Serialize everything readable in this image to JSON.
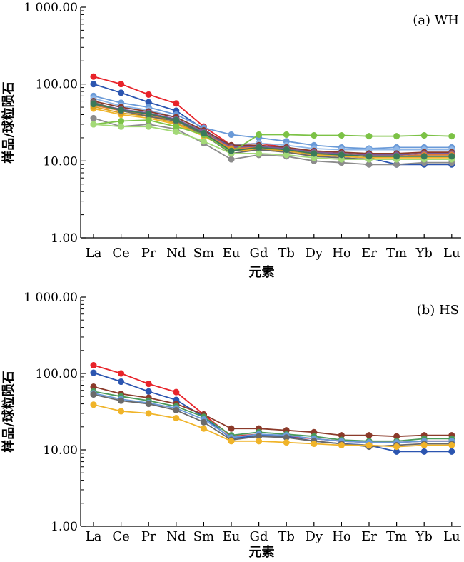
{
  "chart_data": [
    {
      "type": "line",
      "panel_label": "(a) WH",
      "xlabel": "元素",
      "ylabel": "样品/球粒陨石",
      "y_scale": "log",
      "ylim": [
        1,
        1000
      ],
      "ytick_labels": [
        "1.00",
        "10.00",
        "100.00",
        "1 000.00"
      ],
      "categories": [
        "La",
        "Ce",
        "Pr",
        "Nd",
        "Sm",
        "Eu",
        "Gd",
        "Tb",
        "Dy",
        "Ho",
        "Er",
        "Tm",
        "Yb",
        "Lu"
      ],
      "series": [
        {
          "color": "#e8232a",
          "values": [
            125,
            100,
            73,
            56,
            28,
            16,
            17,
            15,
            13,
            12.5,
            12,
            12,
            12.5,
            12.5
          ]
        },
        {
          "color": "#2b55b0",
          "values": [
            100,
            77,
            58,
            45,
            26,
            15,
            16,
            14,
            12,
            11.5,
            11,
            9,
            9,
            9
          ]
        },
        {
          "color": "#6a9ad8",
          "values": [
            70,
            57,
            50,
            40,
            27,
            22,
            20,
            18,
            16,
            15,
            14.5,
            15,
            15,
            15
          ]
        },
        {
          "color": "#8fb7e8",
          "values": [
            65,
            52,
            46,
            37,
            25,
            16,
            17,
            16,
            14.5,
            14,
            14,
            14,
            14,
            14
          ]
        },
        {
          "color": "#8b3a2a",
          "values": [
            60,
            50,
            44,
            37,
            25,
            16,
            16,
            15,
            13.5,
            13,
            12.5,
            12.5,
            13,
            13
          ]
        },
        {
          "color": "#7a5a9a",
          "values": [
            56,
            47,
            42,
            35,
            24,
            15,
            15.5,
            14.5,
            13,
            12.5,
            12,
            12,
            12.5,
            12.5
          ]
        },
        {
          "color": "#e07b39",
          "values": [
            53,
            45,
            40,
            33,
            23,
            14.5,
            15,
            14,
            12.5,
            12,
            11.5,
            11.5,
            12,
            12
          ]
        },
        {
          "color": "#f0b429",
          "values": [
            48,
            40,
            36,
            30,
            21,
            13.5,
            14,
            13,
            12,
            11.5,
            11,
            11,
            11,
            11
          ]
        },
        {
          "color": "#d9a21f",
          "values": [
            51,
            42,
            38,
            31,
            22,
            14,
            14.5,
            13.5,
            12.5,
            12,
            11.5,
            11.5,
            11.5,
            11.5
          ]
        },
        {
          "color": "#8c8c8c",
          "values": [
            36,
            28,
            30,
            26,
            17,
            10.5,
            12,
            11.5,
            10,
            9.5,
            9,
            9,
            9.5,
            9.5
          ]
        },
        {
          "color": "#6a6a6a",
          "values": [
            58,
            45,
            38,
            33,
            22,
            12.5,
            14,
            13,
            11.5,
            11,
            10.5,
            10.5,
            10.5,
            10.5
          ]
        },
        {
          "color": "#7cc246",
          "values": [
            30,
            33,
            34,
            28,
            22,
            13,
            22,
            22,
            21.5,
            21.5,
            21,
            21,
            21.5,
            21
          ]
        },
        {
          "color": "#a3d977",
          "values": [
            30,
            28,
            28,
            24,
            18,
            12.5,
            12.5,
            12,
            11,
            10.5,
            10.5,
            10.5,
            10.5,
            10.5
          ]
        },
        {
          "color": "#3a7a5a",
          "values": [
            55,
            46,
            41,
            34,
            23,
            13.5,
            15,
            14,
            12.5,
            12,
            11.5,
            11.5,
            11.5,
            11.5
          ]
        }
      ]
    },
    {
      "type": "line",
      "panel_label": "(b) HS",
      "xlabel": "元素",
      "ylabel": "样品/球粒陨石",
      "y_scale": "log",
      "ylim": [
        1,
        1000
      ],
      "ytick_labels": [
        "1.00",
        "10.00",
        "100.00",
        "1 000.00"
      ],
      "categories": [
        "La",
        "Ce",
        "Pr",
        "Nd",
        "Sm",
        "Eu",
        "Gd",
        "Tb",
        "Dy",
        "Ho",
        "Er",
        "Tm",
        "Yb",
        "Lu"
      ],
      "series": [
        {
          "color": "#e8232a",
          "values": [
            128,
            100,
            73,
            57,
            29,
            15,
            16,
            15,
            14,
            13,
            12.5,
            12.5,
            13,
            13
          ]
        },
        {
          "color": "#2b55b0",
          "values": [
            102,
            78,
            58,
            45,
            27,
            14,
            15.5,
            15,
            13,
            12,
            11.5,
            9.5,
            9.5,
            9.5
          ]
        },
        {
          "color": "#8b3a2a",
          "values": [
            67,
            54,
            48,
            40,
            29,
            19,
            19,
            18,
            17,
            15.5,
            15.5,
            15,
            15.5,
            15.5
          ]
        },
        {
          "color": "#4a9a5a",
          "values": [
            58,
            50,
            44,
            37,
            27,
            15.5,
            17,
            16,
            15,
            13.5,
            13,
            13,
            14,
            14
          ]
        },
        {
          "color": "#6a9ad8",
          "values": [
            55,
            46,
            41,
            35,
            25,
            14.5,
            16,
            15.5,
            14,
            13,
            12.5,
            12.5,
            13,
            13
          ]
        },
        {
          "color": "#6a6a6a",
          "values": [
            53,
            44,
            40,
            33,
            23,
            13.5,
            15,
            14.5,
            13,
            12,
            11,
            11.5,
            12,
            12
          ]
        },
        {
          "color": "#f0b429",
          "values": [
            39,
            32,
            30,
            26,
            19,
            13,
            13,
            12.5,
            12,
            11.5,
            11.5,
            11,
            11.5,
            11.5
          ]
        }
      ]
    }
  ]
}
